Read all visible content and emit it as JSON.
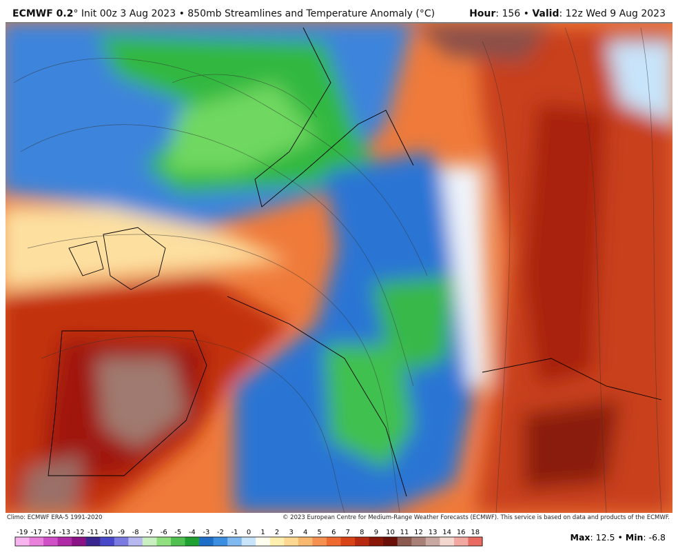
{
  "header": {
    "model": "ECMWF 0.2",
    "title": "° Init 00z 3 Aug 2023 • 850mb Streamlines and Temperature Anomaly (°C)",
    "hour_label": "Hour",
    "hour_value": ": 156 • ",
    "valid_label": "Valid",
    "valid_value": ": 12z Wed 9 Aug 2023"
  },
  "footer": {
    "climo": "Climo: ECMWF ERA-5 1991-2020",
    "copyright": "© 2023 European Centre for Medium-Range Weather Forecasts (ECMWF). This service is based on data and products of the ECMWF."
  },
  "colorbar": {
    "ticks": [
      -19,
      -17,
      -14,
      -13,
      -12,
      -11,
      -10,
      -9,
      -8,
      -7,
      -6,
      -5,
      -4,
      -3,
      -2,
      -1,
      0,
      1,
      2,
      3,
      4,
      5,
      6,
      7,
      8,
      9,
      10,
      11,
      12,
      13,
      14,
      16,
      18
    ],
    "colors": [
      "#f7b4ee",
      "#e880dc",
      "#d050c8",
      "#b02aa8",
      "#8a1485",
      "#3a2890",
      "#4848c8",
      "#7a7ae0",
      "#b8b8f0",
      "#c8f0c0",
      "#90e080",
      "#50c050",
      "#20a030",
      "#1e6ec8",
      "#3c8ee0",
      "#80b8f0",
      "#c8e4fa",
      "#fffff0",
      "#fff0b0",
      "#fdd890",
      "#f9b870",
      "#f59050",
      "#ef6a30",
      "#d84418",
      "#b82a10",
      "#8a1808",
      "#6a1008",
      "#8a5a50",
      "#a88078",
      "#c8a8a0",
      "#f4d8d0",
      "#f0a8a0",
      "#e86a60"
    ]
  },
  "stats": {
    "max_label": "Max",
    "max_value": ": 12.5 • ",
    "min_label": "Min",
    "min_value": ": -6.8"
  }
}
